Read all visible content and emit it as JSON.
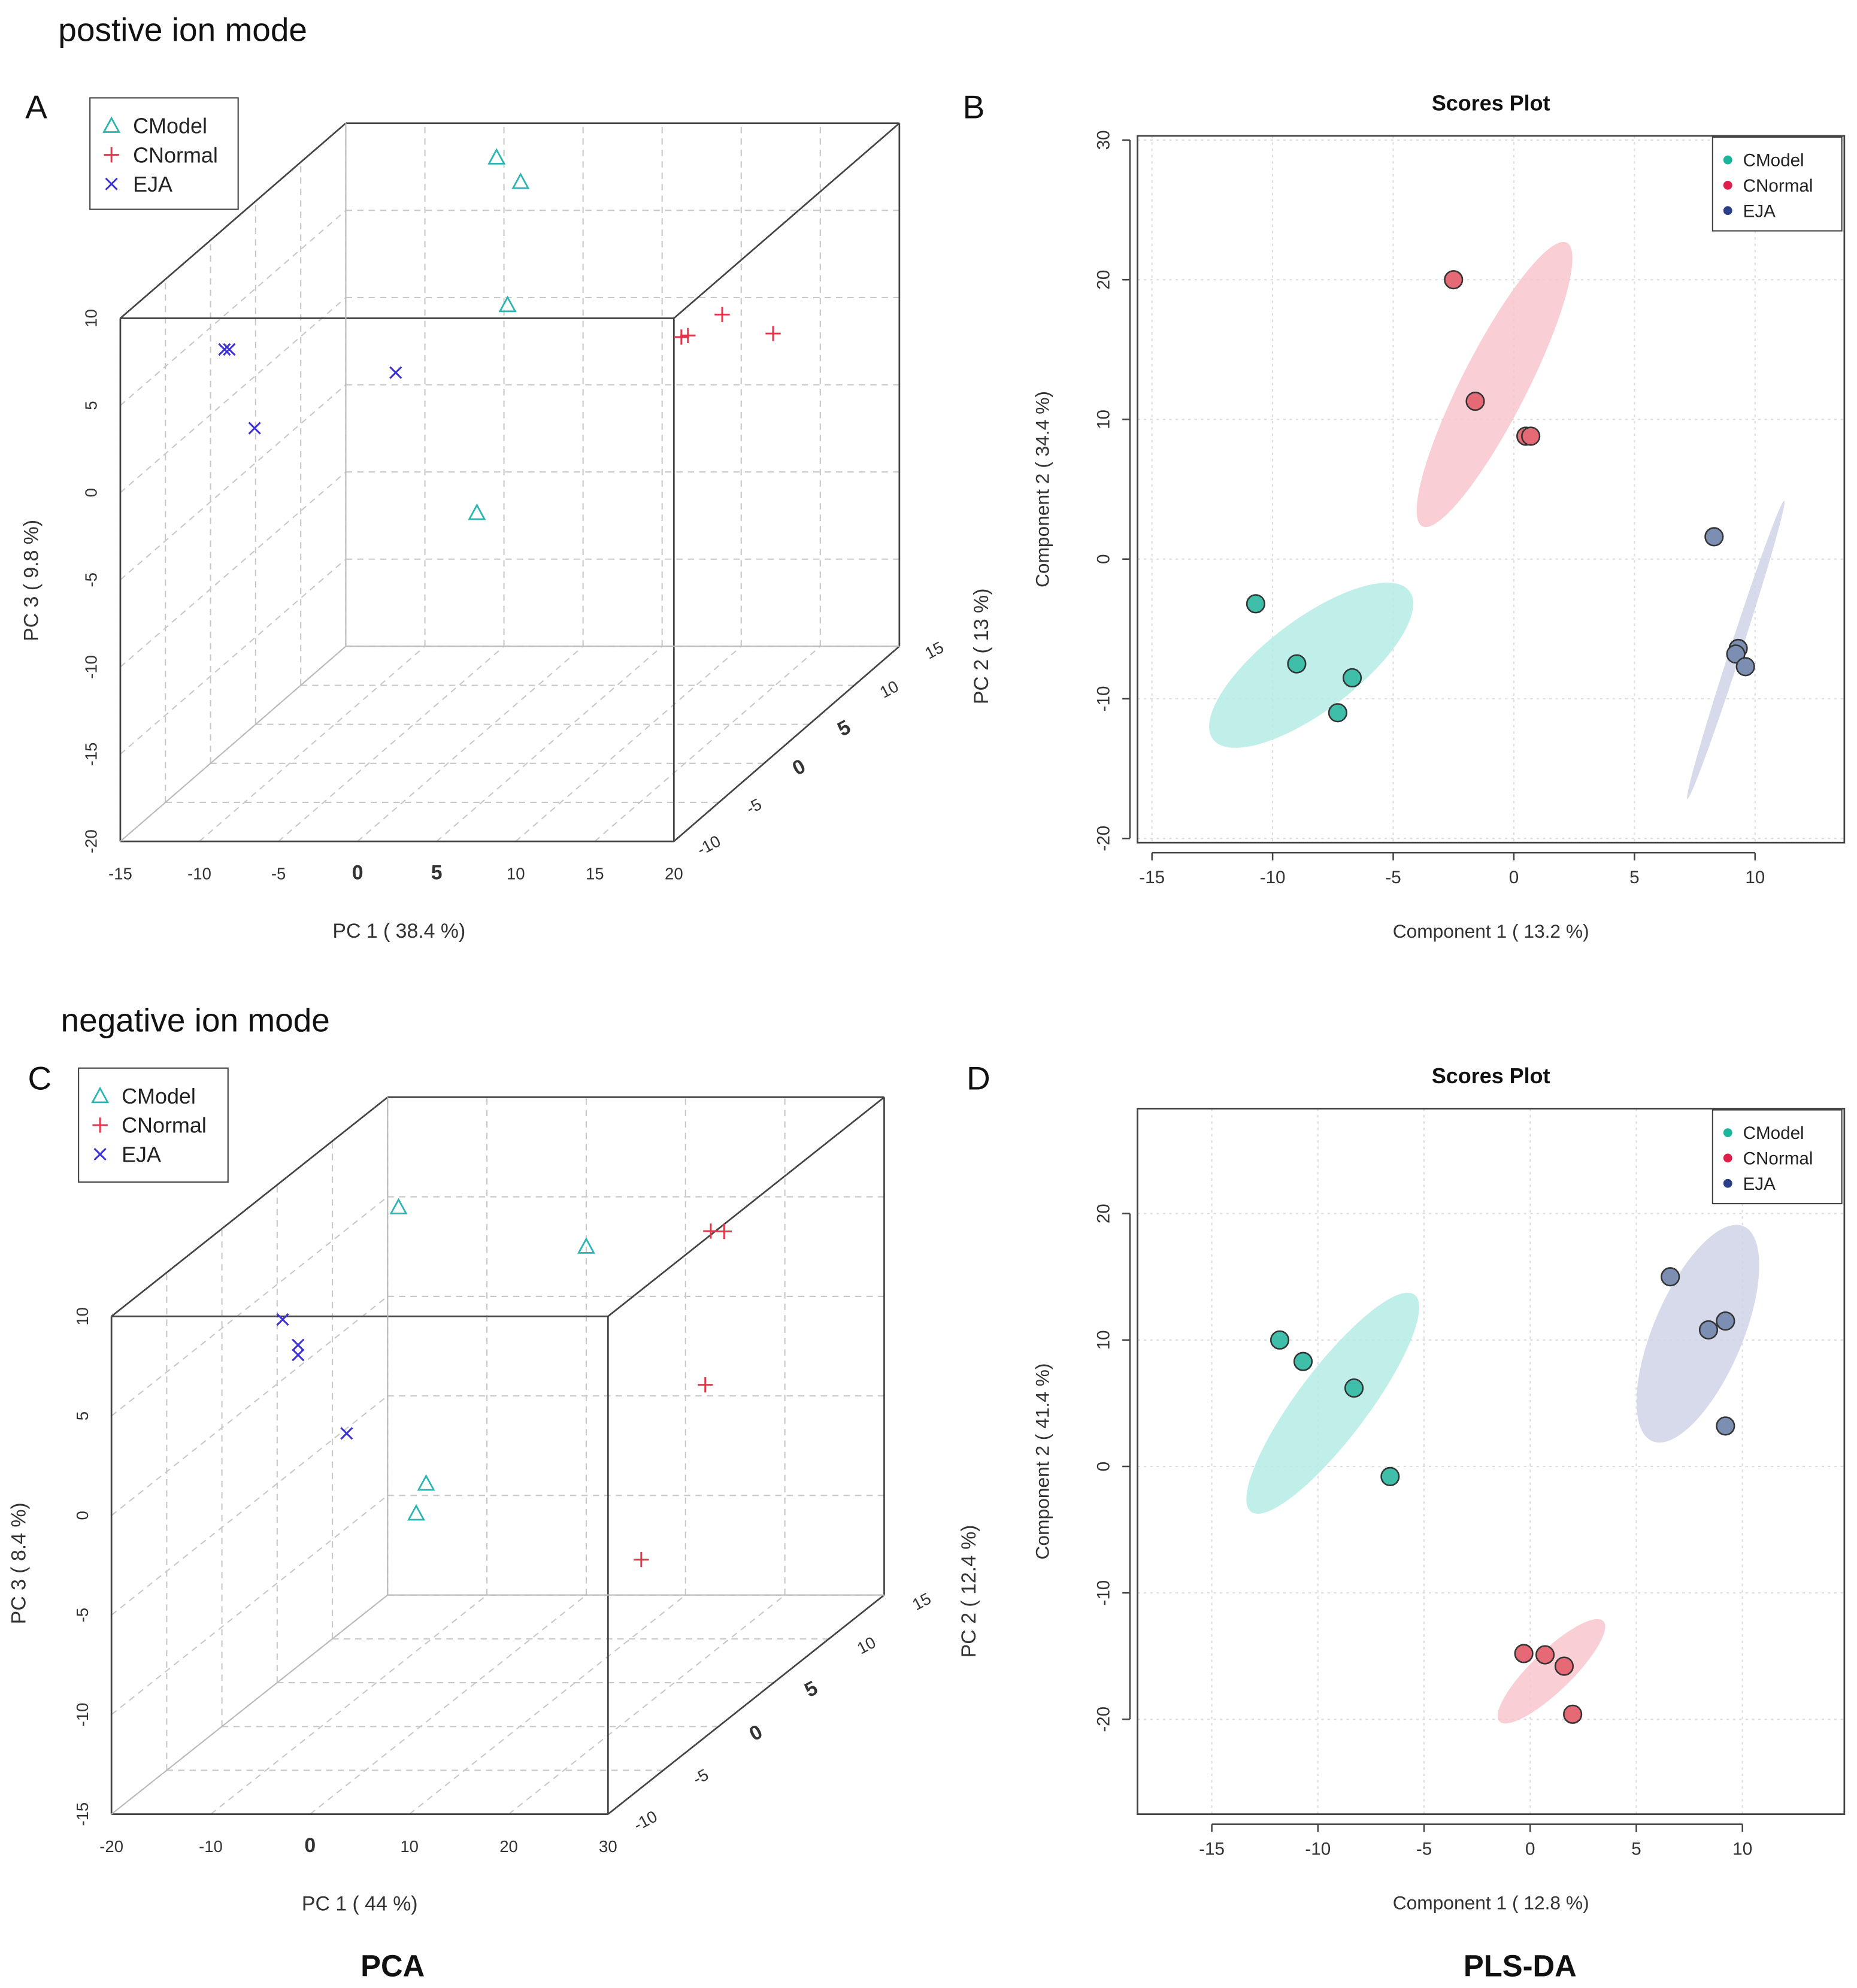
{
  "sections": {
    "positive_title": "postive ion mode",
    "negative_title": "negative ion mode",
    "pca_caption": "PCA",
    "plsda_caption": "PLS-DA"
  },
  "colors": {
    "cmodel": "#29b5b1",
    "cnormal": "#e8334a",
    "eja": "#3a2fd6",
    "cmodel_fill": "#3fbfa9",
    "cnormal_fill": "#e56a76",
    "eja_fill": "#7c8fb3",
    "cmodel_ellipse": "#b5ebe4",
    "cnormal_ellipse": "#f8c6cd",
    "eja_ellipse": "#cfd4e6",
    "cmodel_dot": "#1bb59c",
    "cnormal_dot": "#e01e4a",
    "eja_dot": "#2b3f87"
  },
  "chart_data": [
    {
      "panel": "A",
      "type": "scatter",
      "projection": "3d",
      "title": "",
      "xlabel": "PC 1 ( 38.4 %)",
      "ylabel": "PC 2 ( 13 %)",
      "zlabel": "PC 3 ( 9.8 %)",
      "xlim": [
        -15,
        20
      ],
      "ylim": [
        -10,
        15
      ],
      "zlim": [
        -20,
        10
      ],
      "xticks": [
        -15,
        -10,
        -5,
        0,
        5,
        10,
        15,
        20
      ],
      "yticks": [
        -10,
        -5,
        0,
        5,
        10,
        15
      ],
      "zticks": [
        -20,
        -15,
        -10,
        -5,
        0,
        5,
        10
      ],
      "legend": {
        "position": "top-left",
        "entries": [
          "CModel",
          "CNormal",
          "EJA"
        ]
      },
      "series": [
        {
          "name": "CModel",
          "marker": "triangle",
          "points": [
            [
              -4.5,
              13.3,
              8.8
            ],
            [
              -0.3,
              8.6,
              9.5
            ],
            [
              -5.0,
              12.0,
              -11.0
            ],
            [
              1.5,
              4.0,
              4.5
            ]
          ]
        },
        {
          "name": "CNormal",
          "marker": "plus",
          "points": [
            [
              14.5,
              5.0,
              3.5
            ],
            [
              14.2,
              1.0,
              4.0
            ],
            [
              20.0,
              1.0,
              4.2
            ],
            [
              14.5,
              1.2,
              4.0
            ]
          ]
        },
        {
          "name": "EJA",
          "marker": "x",
          "points": [
            [
              -14.5,
              1.2,
              3.2
            ],
            [
              -14.8,
              1.2,
              3.2
            ],
            [
              -12.5,
              0.5,
              -1.0
            ],
            [
              -7.0,
              6.5,
              -0.5
            ]
          ]
        }
      ]
    },
    {
      "panel": "B",
      "type": "scatter",
      "title": "Scores Plot",
      "xlabel": "Component 1 ( 13.2 %)",
      "ylabel": "Component 2 ( 34.4 %)",
      "xlim": [
        -15.6,
        13.7
      ],
      "ylim": [
        -20.3,
        30.3
      ],
      "xticks": [
        -15,
        -10,
        -5,
        0,
        5,
        10
      ],
      "yticks": [
        -20,
        -10,
        0,
        10,
        20,
        30
      ],
      "grid": true,
      "legend": {
        "position": "top-right",
        "entries": [
          "CModel",
          "CNormal",
          "EJA"
        ]
      },
      "series": [
        {
          "name": "CModel",
          "x": [
            -10.7,
            -9.0,
            -6.7,
            -7.3
          ],
          "y": [
            -3.2,
            -7.5,
            -8.5,
            -11.0
          ],
          "ellipse": {
            "cx": -8.4,
            "cy": -7.6,
            "rx": 5.1,
            "ry": 1.9,
            "angle": -37
          }
        },
        {
          "name": "CNormal",
          "x": [
            -2.5,
            -1.6,
            0.5,
            0.7
          ],
          "y": [
            20.0,
            11.3,
            8.8,
            8.8
          ],
          "ellipse": {
            "cx": -0.8,
            "cy": 12.5,
            "rx": 6.6,
            "ry": 1.35,
            "angle": -63
          }
        },
        {
          "name": "EJA",
          "x": [
            8.3,
            9.3,
            9.2,
            9.6
          ],
          "y": [
            1.6,
            -6.4,
            -6.8,
            -7.7
          ],
          "ellipse": {
            "cx": 9.2,
            "cy": -6.5,
            "rx": 6.5,
            "ry": 0.24,
            "angle": -72
          }
        }
      ]
    },
    {
      "panel": "C",
      "type": "scatter",
      "projection": "3d",
      "title": "",
      "xlabel": "PC 1 ( 44 %)",
      "ylabel": "PC 2 ( 12.4 %)",
      "zlabel": "PC 3 ( 8.4 %)",
      "xlim": [
        -20,
        30
      ],
      "ylim": [
        -10,
        15
      ],
      "zlim": [
        -15,
        10
      ],
      "xticks": [
        -20,
        -10,
        0,
        10,
        20,
        30
      ],
      "yticks": [
        -10,
        -5,
        0,
        5,
        10,
        15
      ],
      "zticks": [
        -15,
        -10,
        -5,
        0,
        5,
        10
      ],
      "legend": {
        "position": "top-left",
        "entries": [
          "CModel",
          "CNormal",
          "EJA"
        ]
      },
      "series": [
        {
          "name": "CModel",
          "marker": "triangle",
          "points": [
            [
              0.0,
              15.0,
              2.5
            ],
            [
              -10.0,
              7.0,
              8.0
            ],
            [
              -5.0,
              5.0,
              -5.0
            ],
            [
              -6.0,
              5.0,
              -6.5
            ]
          ]
        },
        {
          "name": "CNormal",
          "marker": "plus",
          "points": [
            [
              15.0,
              14.0,
              3.7
            ],
            [
              27.0,
              2.0,
              9.0
            ],
            [
              27.0,
              1.5,
              1.5
            ],
            [
              20.0,
              2.0,
              -7.5
            ]
          ]
        },
        {
          "name": "EJA",
          "marker": "x",
          "points": [
            [
              -15.0,
              1.0,
              5.0
            ],
            [
              -14.0,
              1.5,
              3.5
            ],
            [
              -14.0,
              1.5,
              3.0
            ],
            [
              -8.0,
              0.5,
              -0.5
            ]
          ]
        }
      ]
    },
    {
      "panel": "D",
      "type": "scatter",
      "title": "Scores Plot",
      "xlabel": "Component 1 ( 12.8 %)",
      "ylabel": "Component 2 ( 41.4 %)",
      "xlim": [
        -18.5,
        14.8
      ],
      "ylim": [
        -27.5,
        28.3
      ],
      "xticks": [
        -15,
        -10,
        -5,
        0,
        5,
        10
      ],
      "yticks": [
        -20,
        -10,
        0,
        10,
        20
      ],
      "grid": true,
      "legend": {
        "position": "top-right",
        "entries": [
          "CModel",
          "CNormal",
          "EJA"
        ]
      },
      "series": [
        {
          "name": "CModel",
          "x": [
            -11.8,
            -10.7,
            -8.3,
            -6.6
          ],
          "y": [
            10.0,
            8.3,
            6.2,
            -0.8
          ],
          "ellipse": {
            "cx": -9.3,
            "cy": 5.0,
            "rx": 6.4,
            "ry": 1.65,
            "angle": -53
          }
        },
        {
          "name": "CNormal",
          "x": [
            -0.3,
            0.7,
            1.6,
            2.0
          ],
          "y": [
            -14.8,
            -14.9,
            -15.8,
            -19.6
          ],
          "ellipse": {
            "cx": 1.0,
            "cy": -16.2,
            "rx": 3.4,
            "ry": 0.95,
            "angle": -44
          }
        },
        {
          "name": "EJA",
          "x": [
            6.6,
            8.4,
            9.2,
            9.2
          ],
          "y": [
            15.0,
            10.8,
            11.5,
            3.2
          ],
          "ellipse": {
            "cx": 7.9,
            "cy": 10.5,
            "rx": 5.5,
            "ry": 2.1,
            "angle": -67
          }
        }
      ]
    }
  ]
}
